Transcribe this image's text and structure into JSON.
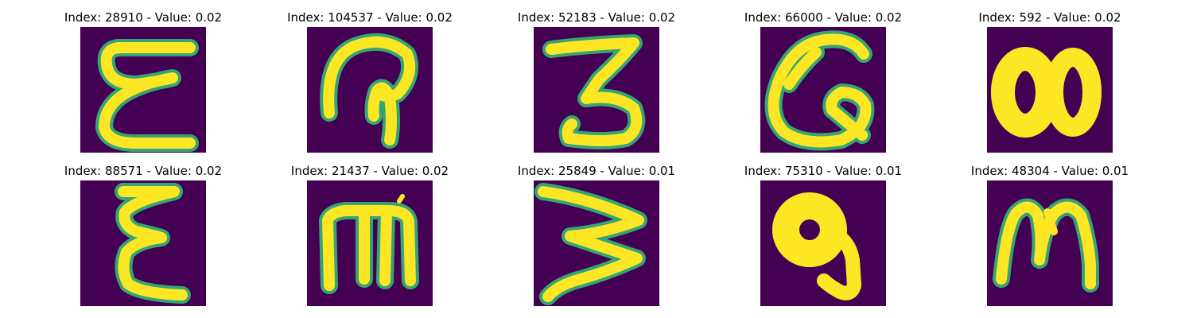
{
  "images": [
    {
      "index": "28910",
      "value": "0.02",
      "glyph": "epsilon-wide"
    },
    {
      "index": "104537",
      "value": "0.02",
      "glyph": "loop-hook"
    },
    {
      "index": "52183",
      "value": "0.02",
      "glyph": "three"
    },
    {
      "index": "66000",
      "value": "0.02",
      "glyph": "loop-q"
    },
    {
      "index": "592",
      "value": "0.02",
      "glyph": "blob-eight"
    },
    {
      "index": "88571",
      "value": "0.02",
      "glyph": "epsilon-narrow"
    },
    {
      "index": "21437",
      "value": "0.02",
      "glyph": "m-stems"
    },
    {
      "index": "25849",
      "value": "0.01",
      "glyph": "w-sideways"
    },
    {
      "index": "75310",
      "value": "0.01",
      "glyph": "nine-blob"
    },
    {
      "index": "48304",
      "value": "0.01",
      "glyph": "m-cursive"
    }
  ],
  "colors": {
    "background": "#440154",
    "stroke": "#fde725",
    "edge": "#35b779"
  }
}
